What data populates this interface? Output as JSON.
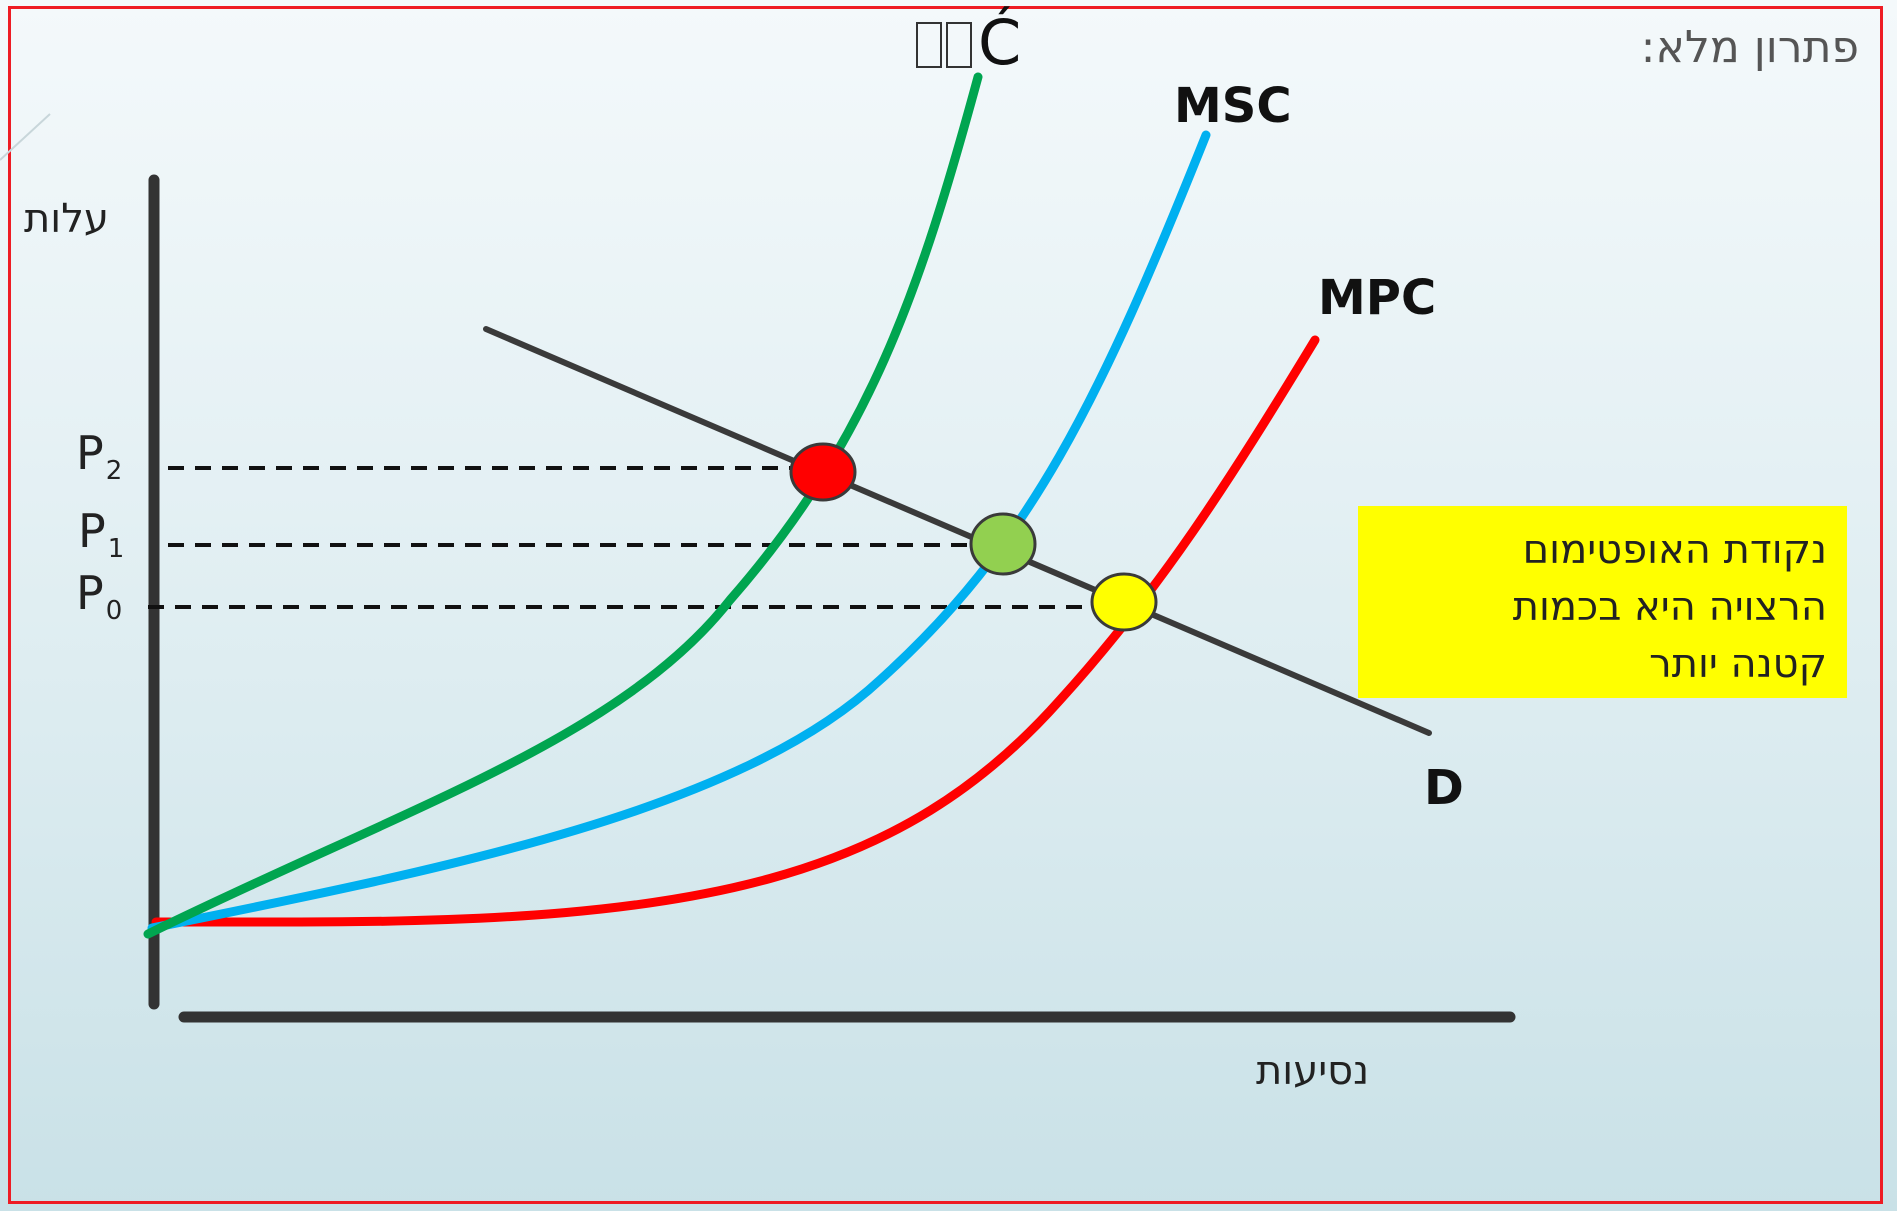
{
  "header": {
    "title": "פתרון מלא:"
  },
  "axes": {
    "y_label": "עלות",
    "x_label": "נסיעות"
  },
  "prices": [
    {
      "symbol": "P",
      "sub": "2"
    },
    {
      "symbol": "P",
      "sub": "1"
    },
    {
      "symbol": "P",
      "sub": "0"
    }
  ],
  "curves": {
    "mecc": "Ć",
    "msc": "MSC",
    "mpc": "MPC",
    "demand": "D"
  },
  "note": {
    "lines": [
      "נקודת האופטימום",
      "הרצויה היא בכמות",
      "קטנה יותר"
    ],
    "color": "#ffff00"
  },
  "colors": {
    "mecc": "#00a550",
    "msc": "#00b0f0",
    "mpc": "#ff0000",
    "demand": "#3a3a3a",
    "point_red": "#ff0000",
    "point_green": "#92d050",
    "point_yellow": "#ffff00",
    "border": "#ee1c24"
  }
}
